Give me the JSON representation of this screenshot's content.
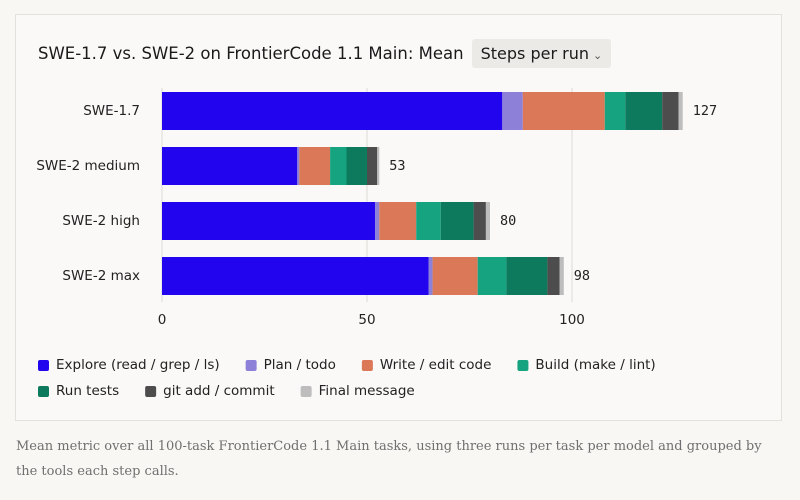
{
  "chart_data": {
    "type": "bar",
    "orientation": "horizontal",
    "stacked": true,
    "title": "SWE-1.7 vs. SWE-2 on FrontierCode 1.1 Main: Mean",
    "dropdown": "Steps per run",
    "categories": [
      "SWE-1.7",
      "SWE-2 medium",
      "SWE-2 high",
      "SWE-2 max"
    ],
    "series": [
      {
        "name": "Explore (read / grep / ls)",
        "color": "#2205ee",
        "values": [
          83,
          33,
          52,
          65
        ]
      },
      {
        "name": "Plan / todo",
        "color": "#8c80d8",
        "values": [
          5,
          0.5,
          1,
          1
        ]
      },
      {
        "name": "Write / edit code",
        "color": "#da7857",
        "values": [
          20,
          7.5,
          9,
          11
        ]
      },
      {
        "name": "Build (make / lint)",
        "color": "#16a37f",
        "values": [
          5,
          4,
          6,
          7
        ]
      },
      {
        "name": "Run tests",
        "color": "#0d7a5d",
        "values": [
          9,
          5,
          8,
          10
        ]
      },
      {
        "name": "git add / commit",
        "color": "#4d4d4d",
        "values": [
          4,
          2.5,
          3,
          3
        ]
      },
      {
        "name": "Final message",
        "color": "#bdbdbd",
        "values": [
          1,
          0.5,
          1,
          1
        ]
      }
    ],
    "totals": [
      127,
      53,
      80,
      98
    ],
    "xlim": [
      0,
      130
    ],
    "xticks": [
      0,
      50,
      100
    ],
    "grid": true,
    "legend": "bottom"
  },
  "caption": "Mean metric over all 100-task FrontierCode 1.1 Main tasks, using three runs per task per model and grouped by the tools each step calls."
}
